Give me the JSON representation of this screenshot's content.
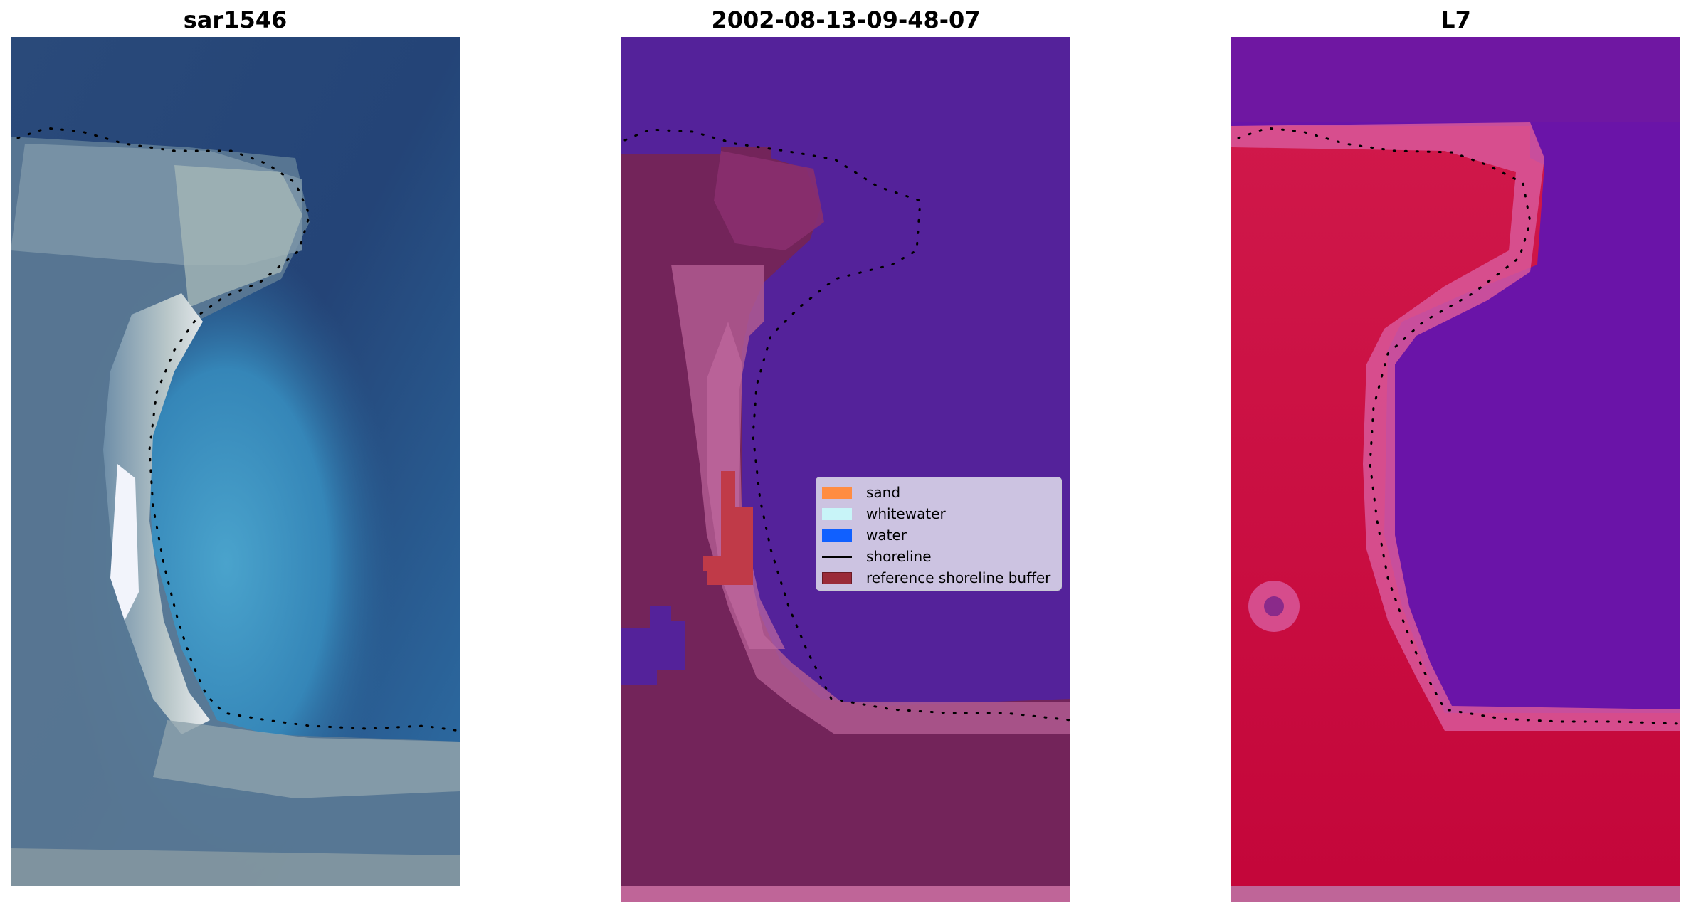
{
  "panels": [
    {
      "title": "sar1546"
    },
    {
      "title": "2002-08-13-09-48-07"
    },
    {
      "title": "L7"
    }
  ],
  "legend": {
    "items": [
      {
        "label": "sand",
        "color": "#ff8c42",
        "kind": "patch"
      },
      {
        "label": "whitewater",
        "color": "#c8f4f8",
        "kind": "patch"
      },
      {
        "label": "water",
        "color": "#1060ff",
        "kind": "patch"
      },
      {
        "label": "shoreline",
        "color": "#000000",
        "kind": "line"
      },
      {
        "label": "reference shoreline buffer",
        "color": "#9a2a38",
        "kind": "patch"
      }
    ]
  },
  "colors": {
    "rgb_water_deep": "#24406e",
    "rgb_water_shallow": "#3d8fc0",
    "rgb_sand": "#c8d0d0",
    "class_water": "#54229a",
    "class_land": "#73245a",
    "class_buffer_edge": "#b05a90",
    "class_buffer_core": "#c03a48",
    "ndwi_water": "#6a14a8",
    "ndwi_land": "#c8063a",
    "ndwi_edge": "#d8589a"
  }
}
